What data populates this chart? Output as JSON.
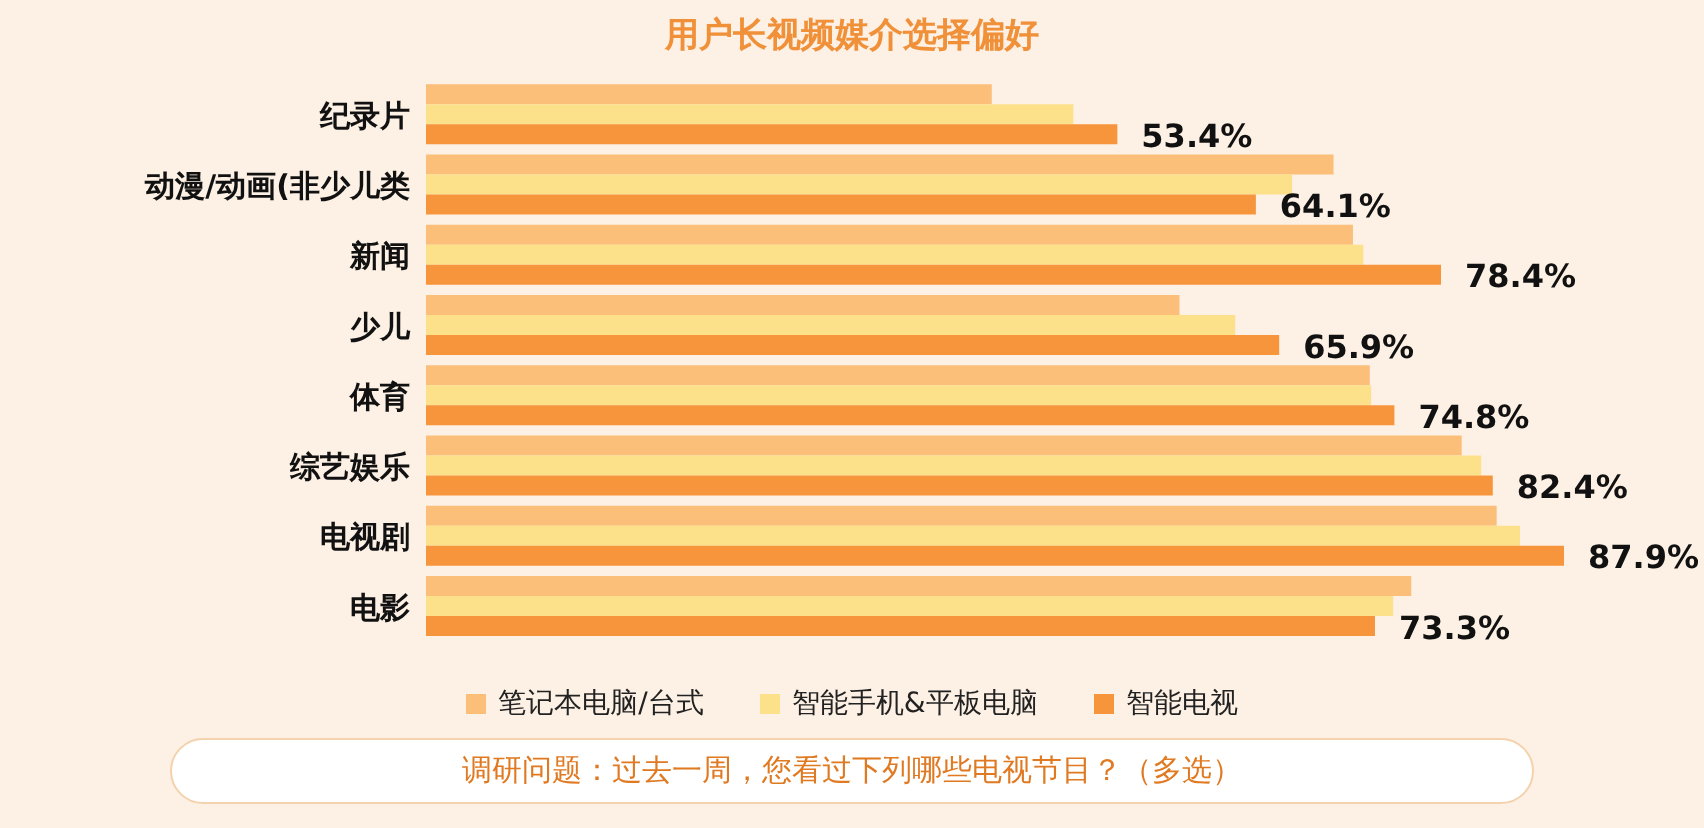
{
  "chart_data": {
    "type": "bar",
    "orientation": "horizontal",
    "title": "用户长视频媒介选择偏好",
    "categories": [
      "纪录片",
      "动漫/动画(非少儿类",
      "新闻",
      "少儿",
      "体育",
      "综艺娱乐",
      "电视剧",
      "电影"
    ],
    "series": [
      {
        "name": "笔记本电脑/台式",
        "color": "#fbbf7a",
        "values": [
          43.7,
          70.1,
          71.6,
          58.2,
          72.9,
          80.0,
          82.7,
          76.1
        ]
      },
      {
        "name": "智能手机&平板电脑",
        "color": "#fde08a",
        "values": [
          50.0,
          66.9,
          72.4,
          62.5,
          73.0,
          81.5,
          84.5,
          74.7
        ]
      },
      {
        "name": "智能电视",
        "color": "#f7953d",
        "values": [
          53.4,
          64.1,
          78.4,
          65.9,
          74.8,
          82.4,
          87.9,
          73.3
        ],
        "value_labels": [
          "53.4%",
          "64.1%",
          "78.4%",
          "65.9%",
          "74.8%",
          "82.4%",
          "87.9%",
          "73.3%"
        ]
      }
    ],
    "legend": "bottom",
    "grid": false,
    "annotations": [
      "调研问题：过去一周，您看过下列哪些电视节目？（多选）"
    ]
  }
}
